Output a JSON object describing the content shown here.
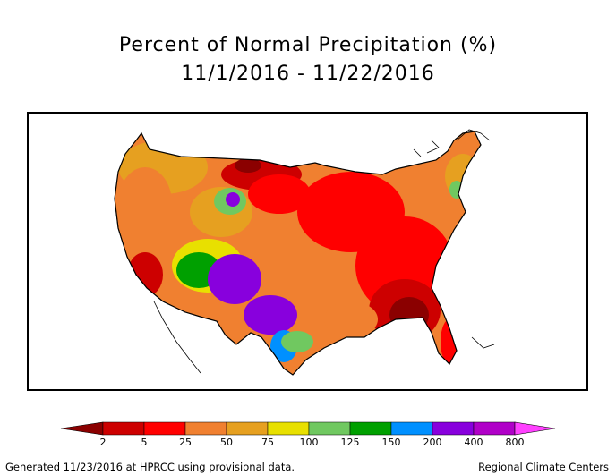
{
  "title": {
    "line1": "Percent of Normal Precipitation (%)",
    "line2": "11/1/2016 - 11/22/2016"
  },
  "legend": {
    "bins": [
      {
        "label": "2",
        "color": "#8b0000"
      },
      {
        "label": "5",
        "color": "#cd0000"
      },
      {
        "label": "25",
        "color": "#ff0000"
      },
      {
        "label": "50",
        "color": "#f08030"
      },
      {
        "label": "75",
        "color": "#e6a020"
      },
      {
        "label": "100",
        "color": "#e8e000"
      },
      {
        "label": "125",
        "color": "#70c860"
      },
      {
        "label": "150",
        "color": "#00a000"
      },
      {
        "label": "200",
        "color": "#0090ff"
      },
      {
        "label": "400",
        "color": "#8800dd"
      },
      {
        "label": "800",
        "color": "#b000c8"
      }
    ],
    "low_color": "#8b0000",
    "high_color": "#ff40ff"
  },
  "footer": {
    "left": "Generated 11/23/2016 at HPRCC using provisional data.",
    "right": "Regional Climate Centers"
  }
}
